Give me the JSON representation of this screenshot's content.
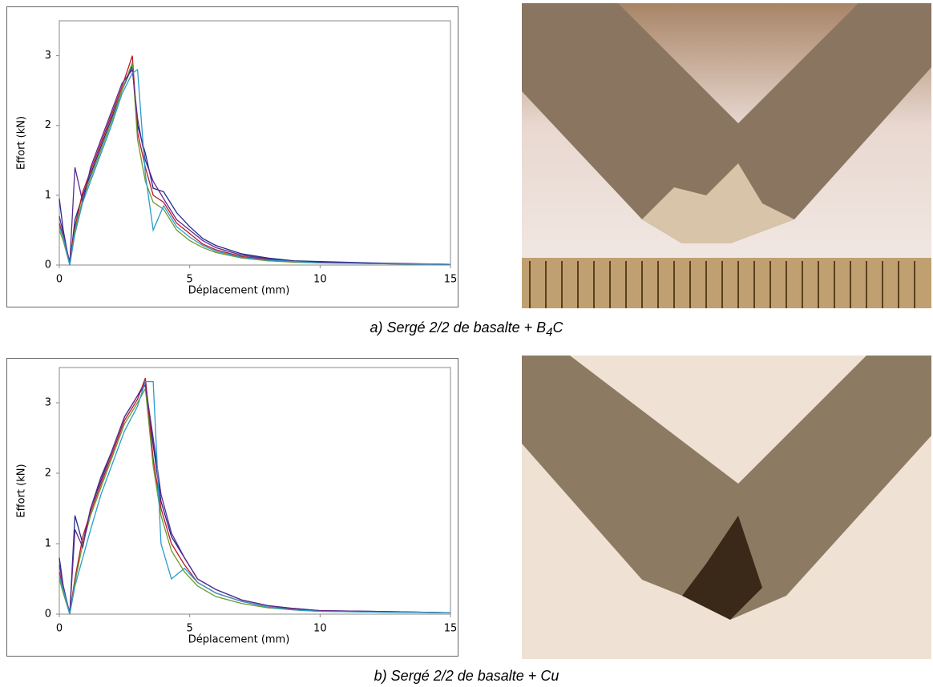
{
  "chart_data": [
    {
      "type": "line",
      "ylabel": "Effort (kN)",
      "xlabel": "Déplacement (mm)",
      "caption": {
        "prefix": "a) Sergé 2/2 de basalte + B",
        "subscript": "4",
        "suffix": "C"
      },
      "xlim": [
        0,
        15
      ],
      "ylim": [
        0,
        3.5
      ],
      "xticks": [
        0,
        5,
        10,
        15
      ],
      "yticks": [
        0,
        1,
        2,
        3
      ],
      "x": [
        0,
        0.15,
        0.4,
        0.6,
        0.9,
        1.2,
        1.6,
        2,
        2.4,
        2.8,
        3,
        3.3,
        3.6,
        4,
        4.5,
        5,
        5.5,
        6,
        7,
        8,
        9,
        10,
        12,
        15
      ],
      "series": [
        {
          "color": "#1f2a8c",
          "values": [
            0.95,
            0.5,
            0.0,
            0.65,
            1.0,
            1.3,
            1.7,
            2.1,
            2.5,
            2.85,
            2.0,
            1.6,
            1.1,
            1.05,
            0.75,
            0.55,
            0.38,
            0.28,
            0.16,
            0.1,
            0.06,
            0.05,
            0.03,
            0.01
          ]
        },
        {
          "color": "#c0142a",
          "values": [
            0.6,
            0.4,
            0.05,
            0.55,
            1.05,
            1.35,
            1.75,
            2.15,
            2.55,
            3.0,
            1.9,
            1.4,
            1.0,
            0.9,
            0.6,
            0.45,
            0.3,
            0.22,
            0.12,
            0.08,
            0.05,
            0.04,
            0.02,
            0.01
          ]
        },
        {
          "color": "#6a9a2a",
          "values": [
            0.5,
            0.35,
            0.0,
            0.5,
            0.95,
            1.25,
            1.65,
            2.05,
            2.5,
            2.9,
            1.8,
            1.2,
            0.9,
            0.8,
            0.5,
            0.35,
            0.25,
            0.18,
            0.1,
            0.06,
            0.04,
            0.03,
            0.02,
            0.01
          ]
        },
        {
          "color": "#5b2a8e",
          "values": [
            0.7,
            0.45,
            0.02,
            1.4,
            0.9,
            1.4,
            1.8,
            2.2,
            2.6,
            2.8,
            2.1,
            1.5,
            1.2,
            0.95,
            0.65,
            0.5,
            0.35,
            0.25,
            0.14,
            0.09,
            0.05,
            0.04,
            0.02,
            0.01
          ]
        },
        {
          "color": "#2a9ccc",
          "values": [
            0.55,
            0.4,
            0.0,
            0.45,
            0.9,
            1.2,
            1.6,
            2.0,
            2.45,
            2.75,
            2.8,
            1.3,
            0.5,
            0.85,
            0.55,
            0.4,
            0.28,
            0.2,
            0.11,
            0.07,
            0.05,
            0.03,
            0.02,
            0.01
          ]
        }
      ]
    },
    {
      "type": "line",
      "ylabel": "Effort (kN)",
      "xlabel": "Déplacement (mm)",
      "caption": {
        "prefix": "b) Sergé 2/2 de basalte + Cu"
      },
      "xlim": [
        0,
        15
      ],
      "ylim": [
        0,
        3.5
      ],
      "xticks": [
        0,
        5,
        10,
        15
      ],
      "yticks": [
        0,
        1,
        2,
        3
      ],
      "x": [
        0,
        0.15,
        0.4,
        0.6,
        0.9,
        1.2,
        1.6,
        2,
        2.5,
        3,
        3.3,
        3.6,
        3.9,
        4.3,
        4.8,
        5.3,
        6,
        7,
        8,
        9,
        10,
        12,
        15
      ],
      "series": [
        {
          "color": "#1f2a8c",
          "values": [
            0.8,
            0.4,
            0.0,
            1.4,
            1.0,
            1.5,
            1.9,
            2.3,
            2.8,
            3.1,
            3.3,
            2.4,
            1.6,
            1.1,
            0.8,
            0.5,
            0.35,
            0.2,
            0.12,
            0.08,
            0.05,
            0.04,
            0.02
          ]
        },
        {
          "color": "#c0142a",
          "values": [
            0.6,
            0.35,
            0.02,
            0.5,
            1.1,
            1.45,
            1.85,
            2.25,
            2.75,
            3.05,
            3.35,
            2.2,
            1.5,
            1.0,
            0.7,
            0.45,
            0.3,
            0.18,
            0.1,
            0.07,
            0.05,
            0.03,
            0.02
          ]
        },
        {
          "color": "#6a9a2a",
          "values": [
            0.5,
            0.3,
            0.0,
            0.45,
            1.0,
            1.4,
            1.8,
            2.2,
            2.7,
            3.0,
            3.2,
            2.1,
            1.4,
            0.9,
            0.6,
            0.4,
            0.25,
            0.15,
            0.09,
            0.06,
            0.04,
            0.03,
            0.02
          ]
        },
        {
          "color": "#5b2a8e",
          "values": [
            0.7,
            0.4,
            0.0,
            1.2,
            0.95,
            1.5,
            1.95,
            2.3,
            2.8,
            3.1,
            3.25,
            2.5,
            1.7,
            1.15,
            0.8,
            0.5,
            0.35,
            0.2,
            0.12,
            0.08,
            0.05,
            0.04,
            0.02
          ]
        },
        {
          "color": "#2a9ccc",
          "values": [
            0.55,
            0.35,
            0.0,
            0.4,
            0.8,
            1.2,
            1.7,
            2.1,
            2.6,
            2.95,
            3.3,
            3.3,
            1.0,
            0.5,
            0.65,
            0.45,
            0.3,
            0.18,
            0.1,
            0.06,
            0.04,
            0.03,
            0.02
          ]
        }
      ]
    }
  ]
}
